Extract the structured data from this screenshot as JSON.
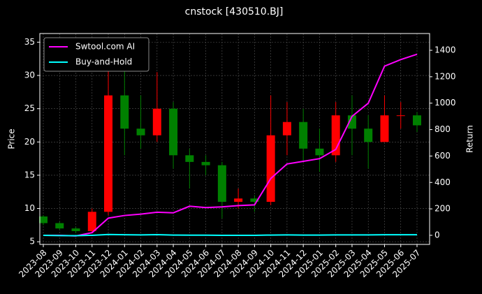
{
  "chart_data": {
    "type": "candlestick",
    "title": "cnstock [430510.BJ]",
    "ylabel": "Price",
    "y2label": "Return",
    "categories": [
      "2023-08",
      "2023-09",
      "2023-10",
      "2023-11",
      "2023-12",
      "2024-01",
      "2024-02",
      "2024-03",
      "2024-04",
      "2024-05",
      "2024-06",
      "2024-07",
      "2024-08",
      "2024-09",
      "2024-10",
      "2024-11",
      "2024-12",
      "2025-01",
      "2025-02",
      "2025-03",
      "2025-04",
      "2025-05",
      "2025-06",
      "2025-07"
    ],
    "open": [
      8.8,
      7.8,
      7.0,
      6.6,
      9.5,
      27,
      22,
      21,
      25,
      18,
      17,
      16.5,
      11,
      11.5,
      11,
      21,
      23,
      19,
      18,
      24,
      22,
      20,
      24,
      24
    ],
    "high": [
      9.0,
      8.0,
      7.2,
      10,
      31,
      31,
      27,
      30.5,
      26,
      19,
      18,
      17,
      13,
      12,
      27,
      26,
      25,
      22,
      26,
      27,
      24,
      27,
      26,
      24.5
    ],
    "low": [
      7.5,
      6.8,
      6.3,
      6.3,
      9,
      18,
      19,
      20,
      16,
      13,
      15,
      8.5,
      10,
      9.5,
      10.5,
      18,
      17,
      15.5,
      17,
      18,
      16,
      20,
      22,
      21.5
    ],
    "close": [
      7.8,
      7.0,
      6.6,
      9.5,
      27,
      22,
      21,
      25,
      18,
      17,
      16.5,
      11,
      11.5,
      11,
      21,
      23,
      19,
      18,
      24,
      22,
      20,
      24,
      24,
      22.5
    ],
    "up_color": "#ff0000",
    "down_color": "#008000",
    "series": [
      {
        "name": "Swtool.com AI",
        "color": "#ff00ff",
        "axis": "y2",
        "values": [
          0,
          0,
          -5,
          20,
          130,
          150,
          160,
          175,
          170,
          220,
          210,
          215,
          225,
          230,
          430,
          540,
          560,
          580,
          650,
          900,
          1000,
          1280,
          1330,
          1370
        ]
      },
      {
        "name": "Buy-and-Hold",
        "color": "#00ffff",
        "axis": "y2",
        "values": [
          0,
          -2,
          -3,
          0,
          6,
          4,
          3,
          5,
          2,
          1,
          1,
          0,
          0,
          0,
          2,
          3,
          2,
          2,
          3,
          3,
          3,
          4,
          4,
          4
        ]
      }
    ],
    "ylim": [
      4.6,
      36.3
    ],
    "yticks": [
      5,
      10,
      15,
      20,
      25,
      30,
      35
    ],
    "y2lim": [
      -69,
      1527
    ],
    "y2ticks": [
      0,
      200,
      400,
      600,
      800,
      1000,
      1200,
      1400
    ],
    "grid": true,
    "legend": "upper-left"
  }
}
